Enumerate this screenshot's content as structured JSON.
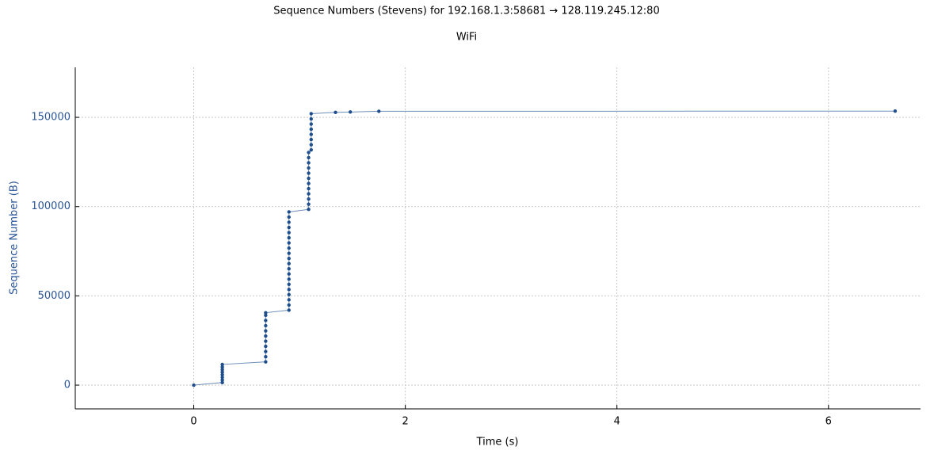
{
  "chart_data": {
    "type": "scatter",
    "title": "Sequence Numbers (Stevens) for 192.168.1.3:58681 → 128.119.245.12:80",
    "subtitle": "WiFi",
    "x_label": "Time (s)",
    "y_label": "Sequence Number (B)",
    "color": "#1f4e8c",
    "line": true,
    "grid": true,
    "xlim": [
      -1.12,
      6.87
    ],
    "ylim": [
      -13300,
      178000
    ],
    "xticks": [
      0,
      2,
      4,
      6
    ],
    "yticks": [
      0,
      50000,
      100000,
      150000
    ],
    "x": [
      0,
      0.27,
      0.27,
      0.27,
      0.27,
      0.27,
      0.27,
      0.27,
      0.27,
      0.68,
      0.68,
      0.68,
      0.68,
      0.68,
      0.68,
      0.68,
      0.68,
      0.68,
      0.68,
      0.68,
      0.9,
      0.9,
      0.9,
      0.9,
      0.9,
      0.9,
      0.9,
      0.9,
      0.9,
      0.9,
      0.9,
      0.9,
      0.9,
      0.9,
      0.9,
      0.9,
      0.9,
      0.9,
      0.9,
      0.9,
      1.086,
      1.086,
      1.086,
      1.086,
      1.086,
      1.086,
      1.086,
      1.086,
      1.086,
      1.086,
      1.086,
      1.086,
      1.11,
      1.11,
      1.11,
      1.11,
      1.11,
      1.11,
      1.11,
      1.11,
      1.34,
      1.48,
      1.75,
      6.63
    ],
    "values": [
      0,
      1448,
      2896,
      4344,
      5792,
      7240,
      8688,
      10136,
      11584,
      13032,
      15928,
      18824,
      21720,
      24616,
      27512,
      30408,
      33304,
      36200,
      39096,
      40544,
      41992,
      44888,
      47784,
      50680,
      53576,
      56472,
      59368,
      62264,
      65160,
      68056,
      70952,
      73848,
      76744,
      79640,
      82536,
      85432,
      88328,
      91224,
      94120,
      97016,
      98464,
      101360,
      104256,
      107152,
      110048,
      112944,
      115840,
      118736,
      121632,
      124528,
      127424,
      130320,
      131768,
      134664,
      137560,
      140456,
      143352,
      146248,
      149144,
      152040,
      152800,
      153000,
      153400,
      153500
    ]
  }
}
